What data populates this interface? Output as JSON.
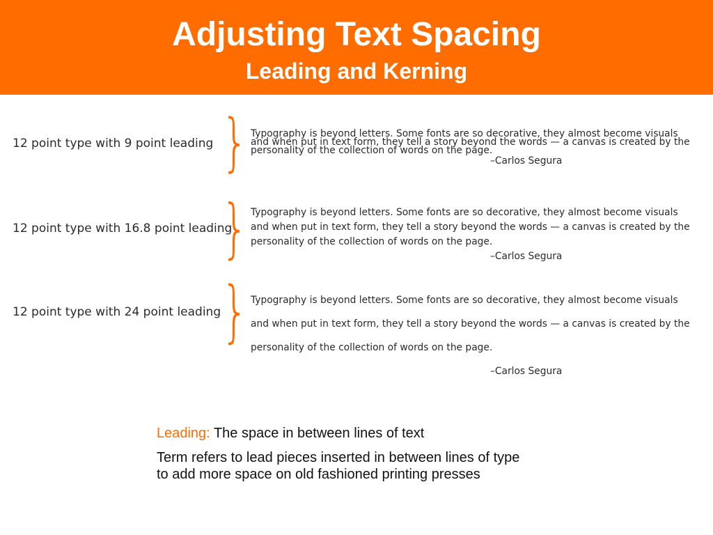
{
  "slide": {
    "title": "Adjusting Text Spacing",
    "subtitle": "Leading and Kerning",
    "accent_color": "#ff6d00"
  },
  "rows": [
    {
      "label": "12 point type with 9 point leading",
      "lines": [
        "Typography is beyond letters. Some fonts are so decorative, they almost become visuals",
        "and when put in text form, they tell a story beyond the words — a canvas is created by the",
        "personality of the collection of words on the page."
      ],
      "attribution": "–Carlos Segura"
    },
    {
      "label": "12 point type with 16.8 point leading",
      "lines": [
        "Typography is beyond letters. Some fonts are so decorative, they almost become visuals",
        "and when put in text form, they tell a story beyond the words — a canvas is created by the",
        "personality of the collection of words on the page."
      ],
      "attribution": "–Carlos Segura"
    },
    {
      "label": "12 point type with 24 point leading",
      "lines": [
        "Typography is beyond letters. Some fonts are so decorative, they almost become visuals",
        "and when put in text form, they tell a story beyond the words — a canvas is created by the",
        "personality of the collection of words on the page."
      ],
      "attribution": "–Carlos Segura"
    }
  ],
  "definition": {
    "term": "Leading:",
    "text": "The space in between lines of text",
    "note_lines": [
      "Term refers to lead pieces inserted in between lines of type",
      "to add more space on old fashioned printing presses"
    ]
  }
}
